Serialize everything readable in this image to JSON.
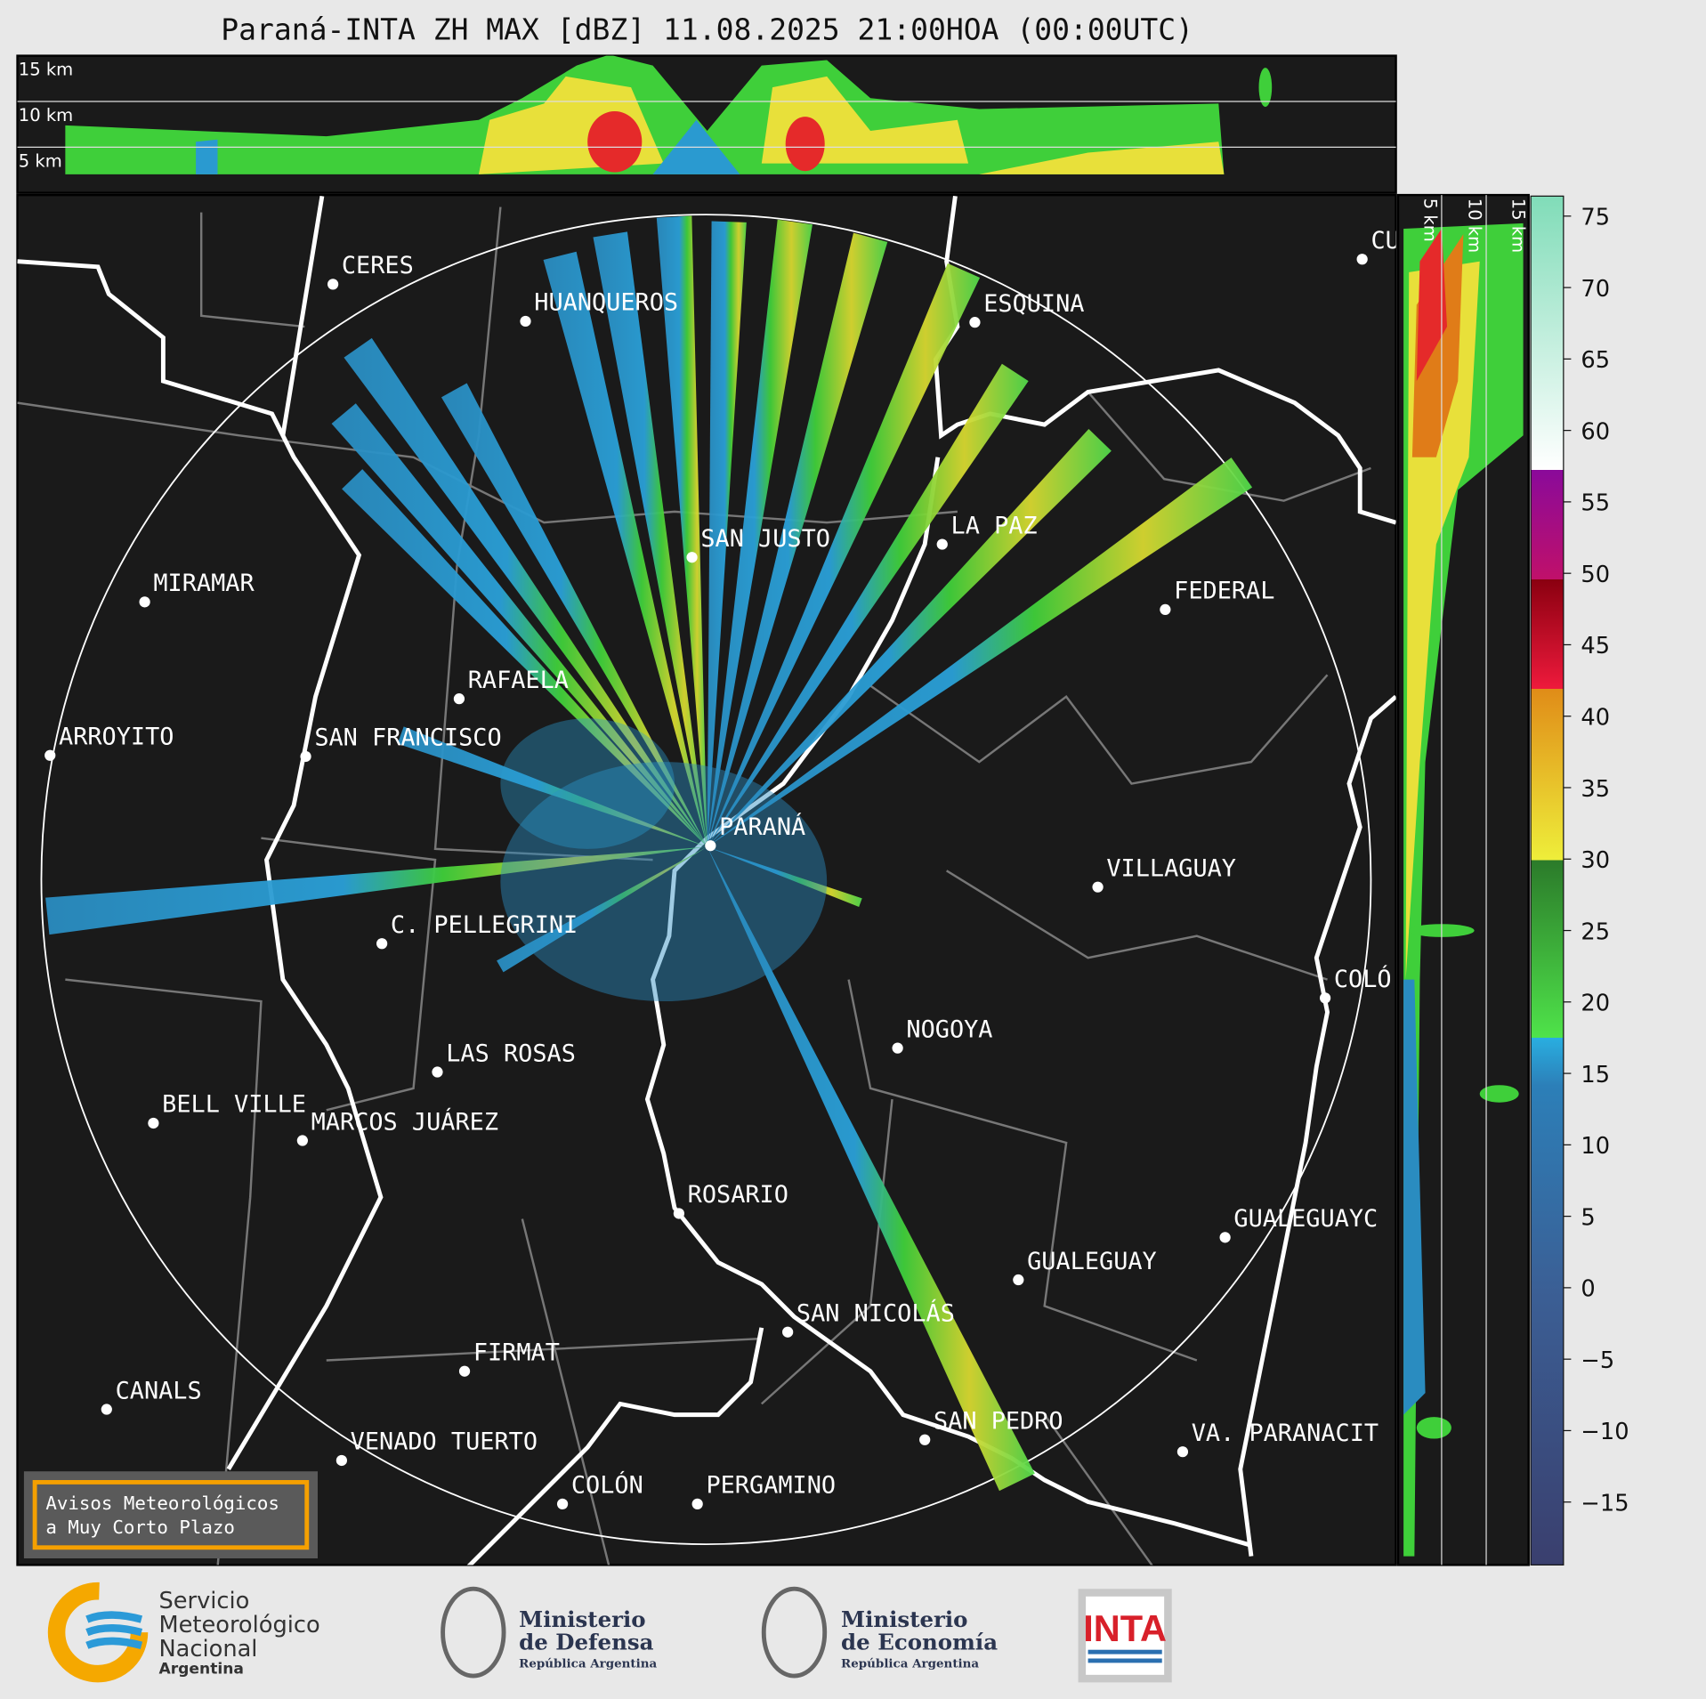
{
  "title": "Paraná-INTA ZH MAX [dBZ] 11.08.2025 21:00HOA (00:00UTC)",
  "top_panel": {
    "height_labels": [
      "15 km",
      "10 km",
      "5 km"
    ]
  },
  "side_panel": {
    "height_labels": [
      "5 km",
      "10 km",
      "15 km"
    ]
  },
  "cities": [
    "CERES",
    "HUANQUEROS",
    "ESQUINA",
    "SAN JUSTO",
    "LA PAZ",
    "MIRAMAR",
    "FEDERAL",
    "RAFAELA",
    "ARROYITO",
    "SAN FRANCISCO",
    "PARANÁ",
    "VILLAGUAY",
    "C. PELLEGRINI",
    "COLÓ",
    "NOGOYA",
    "LAS ROSAS",
    "BELL VILLE",
    "MARCOS JUÁREZ",
    "ROSARIO",
    "GUALEGUAYC",
    "GUALEGUAY",
    "SAN NICOLÁS",
    "FIRMAT",
    "CANALS",
    "SAN PEDRO",
    "VA. PARANACIT",
    "VENADO TUERTO",
    "COLÓN",
    "PERGAMINO",
    "CU"
  ],
  "warning_box": [
    "Avisos Meteorológicos",
    "a Muy Corto Plazo"
  ],
  "colorbar": {
    "lim": [
      -19.4,
      76.4
    ],
    "ticks": [
      {
        "value": -15,
        "label": "−15"
      },
      {
        "value": -10,
        "label": "−10"
      },
      {
        "value": -5,
        "label": "−5"
      },
      0,
      5,
      10,
      15,
      20,
      25,
      30,
      35,
      40,
      45,
      50,
      55,
      60,
      65,
      70,
      75
    ]
  },
  "logos": {
    "smn": [
      "Servicio",
      "Meteorológico",
      "Nacional",
      "Argentina"
    ],
    "defensa": [
      "Ministerio",
      "de Defensa",
      "República Argentina"
    ],
    "economia": [
      "Ministerio",
      "de Economía",
      "República Argentina"
    ],
    "inta": "INTA"
  }
}
